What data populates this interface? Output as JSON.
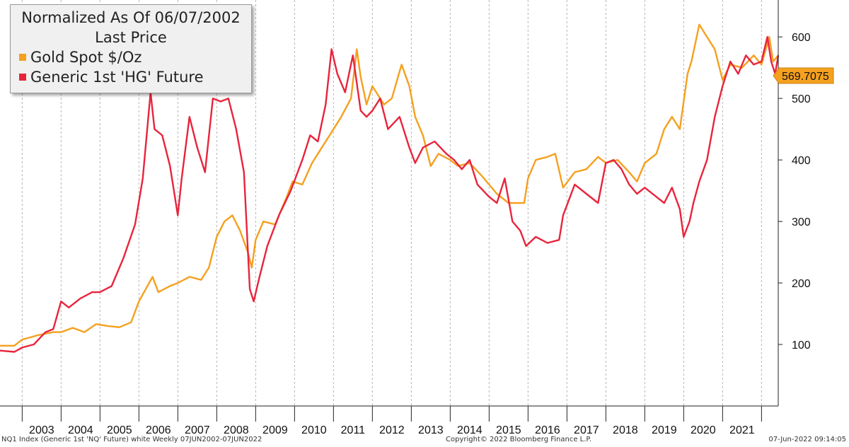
{
  "legend": {
    "title_line1": "Normalized As Of 06/07/2002",
    "title_line2": "Last Price",
    "items": [
      {
        "label": "Gold Spot $/Oz",
        "color": "#f5a01f"
      },
      {
        "label": "Generic 1st 'HG' Future",
        "color": "#e8243c"
      }
    ]
  },
  "last_value_label": "569.7075",
  "footer": {
    "left": "NQ1 Index (Generic 1st 'NQ' Future) white  Weekly 07JUN2002-07JUN2022",
    "center": "Copyright© 2022 Bloomberg Finance L.P.",
    "right": "07-Jun-2022 09:14:05"
  },
  "chart_data": {
    "type": "line",
    "x_axis": {
      "min": 2002.43,
      "max": 2022.43,
      "tick_labels": [
        "2003",
        "2004",
        "2005",
        "2006",
        "2007",
        "2008",
        "2009",
        "2010",
        "2011",
        "2012",
        "2013",
        "2014",
        "2015",
        "2016",
        "2017",
        "2018",
        "2019",
        "2020",
        "2021"
      ]
    },
    "y_axis": {
      "min": 0,
      "max": 660,
      "ticks": [
        100,
        200,
        300,
        400,
        500,
        600
      ],
      "position": "right"
    },
    "grid": "vertical dashed at year boundaries",
    "series": [
      {
        "name": "Gold Spot $/Oz",
        "color": "#f5a01f",
        "x": [
          2002.43,
          2002.8,
          2003.0,
          2003.4,
          2003.8,
          2004.0,
          2004.3,
          2004.6,
          2004.9,
          2005.2,
          2005.5,
          2005.8,
          2006.0,
          2006.35,
          2006.5,
          2006.8,
          2007.0,
          2007.3,
          2007.6,
          2007.8,
          2008.0,
          2008.2,
          2008.4,
          2008.6,
          2008.8,
          2008.9,
          2009.0,
          2009.2,
          2009.5,
          2009.8,
          2009.95,
          2010.2,
          2010.45,
          2010.7,
          2010.9,
          2011.2,
          2011.45,
          2011.6,
          2011.7,
          2011.85,
          2012.0,
          2012.3,
          2012.5,
          2012.75,
          2012.95,
          2013.1,
          2013.3,
          2013.5,
          2013.7,
          2014.0,
          2014.2,
          2014.5,
          2014.8,
          2015.0,
          2015.2,
          2015.5,
          2015.9,
          2016.0,
          2016.2,
          2016.5,
          2016.7,
          2016.9,
          2017.2,
          2017.5,
          2017.8,
          2018.0,
          2018.3,
          2018.6,
          2018.8,
          2019.0,
          2019.3,
          2019.5,
          2019.7,
          2019.9,
          2020.1,
          2020.2,
          2020.4,
          2020.6,
          2020.8,
          2021.0,
          2021.2,
          2021.5,
          2021.8,
          2022.0,
          2022.2,
          2022.3,
          2022.43
        ],
        "y": [
          98,
          98,
          108,
          115,
          120,
          120,
          127,
          120,
          133,
          130,
          128,
          136,
          170,
          210,
          185,
          195,
          200,
          210,
          205,
          225,
          275,
          300,
          310,
          285,
          250,
          225,
          270,
          300,
          295,
          340,
          365,
          360,
          395,
          420,
          440,
          470,
          500,
          580,
          535,
          490,
          520,
          490,
          500,
          555,
          520,
          470,
          440,
          390,
          410,
          400,
          390,
          395,
          375,
          360,
          345,
          330,
          330,
          370,
          400,
          405,
          410,
          355,
          380,
          385,
          405,
          395,
          400,
          380,
          365,
          395,
          410,
          450,
          470,
          450,
          540,
          560,
          620,
          600,
          580,
          530,
          555,
          550,
          570,
          555,
          600,
          560,
          570
        ]
      },
      {
        "name": "Generic 1st 'HG' Future",
        "color": "#e8243c",
        "x": [
          2002.43,
          2002.8,
          2003.0,
          2003.3,
          2003.6,
          2003.8,
          2004.0,
          2004.2,
          2004.5,
          2004.8,
          2005.0,
          2005.3,
          2005.6,
          2005.9,
          2006.1,
          2006.3,
          2006.4,
          2006.6,
          2006.8,
          2007.0,
          2007.1,
          2007.3,
          2007.5,
          2007.7,
          2007.9,
          2008.1,
          2008.3,
          2008.5,
          2008.7,
          2008.85,
          2008.95,
          2009.1,
          2009.3,
          2009.6,
          2009.9,
          2010.2,
          2010.4,
          2010.6,
          2010.8,
          2010.95,
          2011.1,
          2011.3,
          2011.5,
          2011.7,
          2011.85,
          2012.0,
          2012.2,
          2012.4,
          2012.7,
          2012.95,
          2013.1,
          2013.3,
          2013.6,
          2013.9,
          2014.1,
          2014.3,
          2014.5,
          2014.7,
          2015.0,
          2015.2,
          2015.4,
          2015.6,
          2015.8,
          2015.95,
          2016.2,
          2016.5,
          2016.8,
          2016.9,
          2017.2,
          2017.5,
          2017.8,
          2018.0,
          2018.2,
          2018.4,
          2018.6,
          2018.8,
          2019.0,
          2019.3,
          2019.5,
          2019.7,
          2019.9,
          2020.0,
          2020.15,
          2020.25,
          2020.4,
          2020.6,
          2020.8,
          2021.0,
          2021.2,
          2021.4,
          2021.6,
          2021.8,
          2022.0,
          2022.15,
          2022.25,
          2022.35,
          2022.43
        ],
        "y": [
          90,
          88,
          95,
          100,
          120,
          125,
          170,
          160,
          175,
          185,
          185,
          195,
          240,
          295,
          370,
          510,
          450,
          440,
          390,
          310,
          370,
          470,
          420,
          380,
          500,
          495,
          500,
          450,
          380,
          190,
          170,
          210,
          260,
          310,
          350,
          400,
          440,
          430,
          490,
          580,
          540,
          510,
          570,
          480,
          470,
          480,
          500,
          450,
          470,
          420,
          395,
          420,
          430,
          410,
          400,
          385,
          400,
          360,
          340,
          330,
          370,
          300,
          285,
          260,
          275,
          265,
          270,
          310,
          360,
          345,
          330,
          395,
          400,
          385,
          360,
          345,
          355,
          340,
          330,
          355,
          320,
          275,
          300,
          330,
          365,
          400,
          470,
          520,
          560,
          540,
          570,
          555,
          560,
          600,
          560,
          540,
          570
        ]
      }
    ]
  }
}
